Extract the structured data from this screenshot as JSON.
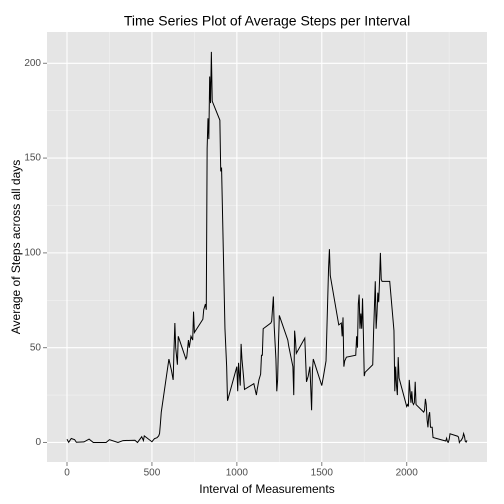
{
  "chart_data": {
    "type": "line",
    "title": "Time Series Plot of Average Steps per Interval",
    "x_label": "Interval of Measurements",
    "y_label": "Average of Steps across all days",
    "x": [
      0,
      10,
      25,
      45,
      55,
      100,
      130,
      155,
      200,
      230,
      250,
      300,
      330,
      400,
      415,
      440,
      450,
      455,
      500,
      515,
      530,
      540,
      545,
      550,
      555,
      600,
      605,
      615,
      625,
      630,
      635,
      640,
      650,
      655,
      700,
      705,
      715,
      720,
      730,
      740,
      745,
      750,
      800,
      805,
      815,
      820,
      825,
      830,
      835,
      840,
      845,
      850,
      855,
      900,
      905,
      910,
      930,
      940,
      945,
      1000,
      1005,
      1010,
      1020,
      1025,
      1030,
      1040,
      1045,
      1100,
      1115,
      1120,
      1130,
      1140,
      1145,
      1150,
      1155,
      1200,
      1205,
      1215,
      1220,
      1230,
      1235,
      1240,
      1245,
      1250,
      1300,
      1305,
      1330,
      1335,
      1340,
      1345,
      1350,
      1400,
      1410,
      1420,
      1430,
      1435,
      1440,
      1445,
      1450,
      1500,
      1510,
      1525,
      1540,
      1545,
      1550,
      1600,
      1615,
      1620,
      1625,
      1630,
      1635,
      1640,
      1645,
      1700,
      1705,
      1710,
      1715,
      1720,
      1725,
      1730,
      1735,
      1740,
      1745,
      1750,
      1755,
      1800,
      1805,
      1815,
      1820,
      1825,
      1830,
      1835,
      1840,
      1845,
      1850,
      1855,
      1900,
      1925,
      1930,
      1935,
      1940,
      1945,
      1950,
      1955,
      2000,
      2005,
      2010,
      2015,
      2020,
      2025,
      2030,
      2035,
      2040,
      2045,
      2050,
      2055,
      2100,
      2105,
      2110,
      2115,
      2120,
      2125,
      2130,
      2135,
      2140,
      2145,
      2150,
      2155,
      2200,
      2230,
      2235,
      2240,
      2245,
      2250,
      2255,
      2300,
      2305,
      2310,
      2315,
      2320,
      2330,
      2335,
      2340,
      2345,
      2350,
      2355
    ],
    "values": [
      1.7,
      0.1,
      2.1,
      1.5,
      0.1,
      0.3,
      1.8,
      0,
      0,
      0,
      1.5,
      0,
      1.0,
      1.2,
      0,
      3.0,
      1.0,
      3.5,
      0.4,
      2.0,
      2.5,
      3.5,
      4.8,
      10,
      16,
      44,
      42,
      38,
      33,
      49,
      63,
      50,
      41,
      56,
      44,
      45,
      54,
      50,
      56,
      54,
      69,
      58,
      65,
      70,
      73,
      70,
      155,
      171,
      160,
      193,
      179,
      206,
      180,
      170,
      143,
      145,
      60,
      40,
      22,
      40,
      27,
      42,
      30,
      52,
      44,
      34,
      28,
      31,
      25,
      28,
      33,
      36,
      46,
      46,
      60,
      63,
      64,
      77,
      61,
      44,
      27,
      33,
      52,
      67,
      54,
      51,
      40,
      25,
      59,
      54,
      47,
      55,
      32,
      35,
      40,
      29,
      17,
      38,
      44,
      30,
      35,
      43,
      92,
      102,
      88,
      62,
      63,
      56,
      66,
      40,
      43,
      44,
      45,
      46,
      56,
      50,
      73,
      78,
      60,
      68,
      60,
      76,
      57,
      35,
      37,
      41,
      58,
      85,
      60,
      68,
      79,
      74,
      85,
      100,
      86,
      85,
      85,
      59,
      27,
      40,
      30,
      25,
      45,
      34,
      19,
      20,
      19,
      33,
      27,
      21,
      27,
      21,
      20,
      21,
      32,
      20,
      16,
      17,
      23,
      20,
      12,
      8,
      14,
      16,
      8,
      8,
      8,
      2.6,
      1.5,
      0.8,
      2.2,
      0.3,
      0.1,
      1.6,
      4.6,
      3.3,
      2.8,
      0,
      0.8,
      1.0,
      2.6,
      4.7,
      3.3,
      0.6,
      0.2,
      1.1
    ],
    "color": "#000000",
    "xlim": [
      -117.75,
      2472.75
    ],
    "xticks": [
      0,
      500,
      1000,
      1500,
      2000
    ],
    "x_minor_ticks": [
      250,
      750,
      1250,
      1750,
      2250
    ],
    "ylim": [
      -10.3,
      216.5
    ],
    "yticks": [
      0,
      50,
      100,
      150,
      200
    ],
    "y_minor_ticks": [
      25,
      75,
      125,
      175
    ],
    "grid": true
  }
}
